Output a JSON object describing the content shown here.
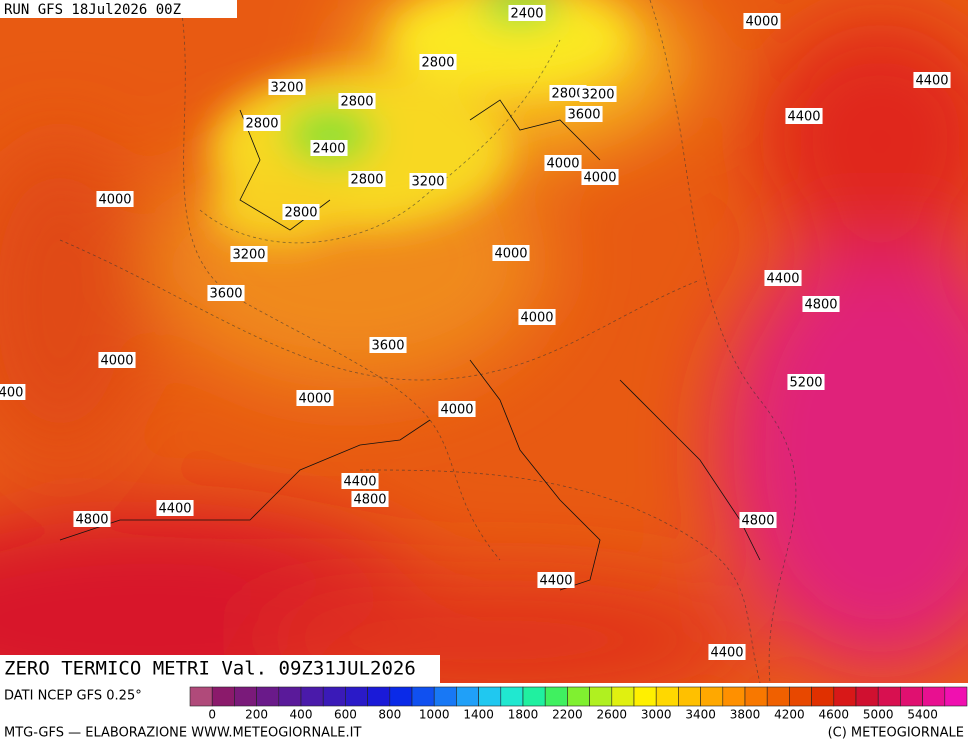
{
  "header": {
    "run": "RUN GFS 18Jul2026 00Z"
  },
  "map": {
    "contour_labels": [
      2400,
      4000,
      2800,
      4400,
      3200,
      2800,
      2800,
      3200,
      3600,
      2800,
      4400,
      2400,
      4000,
      4000,
      2800,
      3200,
      4000,
      2800,
      4000,
      3200,
      4400,
      3600,
      4800,
      4000,
      3600,
      4000,
      5200,
      4000,
      4000,
      4400,
      4800,
      4400,
      4800,
      4800,
      4400,
      4400,
      400
    ]
  },
  "footer": {
    "title": "ZERO TERMICO METRI Val. 09Z31JUL2026",
    "source": "DATI NCEP GFS 0.25°",
    "credit": "MTG-GFS — ELABORAZIONE WWW.METEOGIORNALE.IT",
    "copyright": "(C) METEOGIORNALE"
  },
  "colorbar": {
    "colors": [
      "#b04a7a",
      "#8b1a6b",
      "#7a1a7a",
      "#6a1a8a",
      "#5a1a9a",
      "#4a1aaa",
      "#3a1ab8",
      "#2a1ac8",
      "#1a1ad8",
      "#0a2ae8",
      "#1050f0",
      "#1878f5",
      "#20a0f8",
      "#20c8f0",
      "#20e8d0",
      "#20f0a0",
      "#40f060",
      "#80f030",
      "#b0f020",
      "#e0f010",
      "#fff000",
      "#ffd800",
      "#ffc000",
      "#ffa800",
      "#ff9000",
      "#f87800",
      "#f06000",
      "#e84800",
      "#e03000",
      "#d81818",
      "#d01030",
      "#d81050",
      "#e01070",
      "#e81090",
      "#f010b0"
    ],
    "labels": [
      0,
      200,
      400,
      600,
      800,
      1000,
      1400,
      1800,
      2200,
      2600,
      3000,
      3400,
      3800,
      4200,
      4600,
      5000,
      5400
    ]
  }
}
